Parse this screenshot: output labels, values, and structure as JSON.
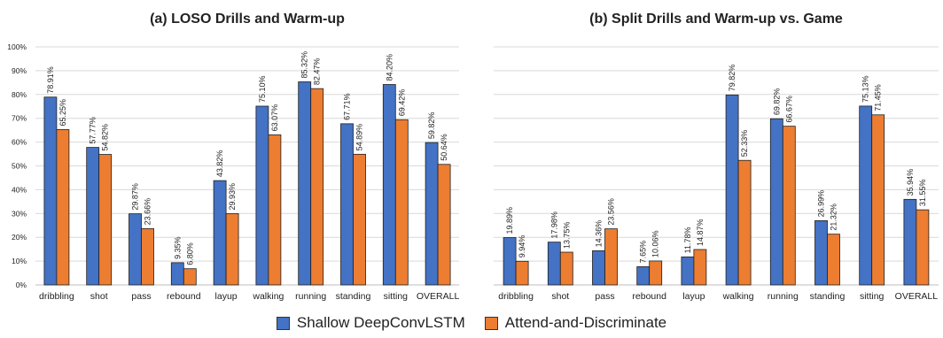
{
  "colors": {
    "shallow": "#4472C4",
    "attend": "#ED7D31",
    "grid": "#d9d9d9",
    "text": "#222222"
  },
  "legend": {
    "series_1": "Shallow DeepConvLSTM",
    "series_2": "Attend-and-Discriminate"
  },
  "chart_data": [
    {
      "type": "bar",
      "title": "(a) LOSO Drills and Warm-up",
      "categories": [
        "dribbling",
        "shot",
        "pass",
        "rebound",
        "layup",
        "walking",
        "running",
        "standing",
        "sitting",
        "OVERALL"
      ],
      "ylim": [
        0,
        100
      ],
      "yticks": [
        "0%",
        "10%",
        "20%",
        "30%",
        "40%",
        "50%",
        "60%",
        "70%",
        "80%",
        "90%",
        "100%"
      ],
      "grid": true,
      "legend_position": "bottom",
      "series": [
        {
          "name": "Shallow DeepConvLSTM",
          "values": [
            78.91,
            57.77,
            29.87,
            9.35,
            43.82,
            75.1,
            85.32,
            67.71,
            84.2,
            59.82
          ],
          "labels": [
            "78.91%",
            "57.77%",
            "29.87%",
            "9.35%",
            "43.82%",
            "75.10%",
            "85.32%",
            "67.71%",
            "84.20%",
            "59.82%"
          ]
        },
        {
          "name": "Attend-and-Discriminate",
          "values": [
            65.25,
            54.82,
            23.66,
            6.8,
            29.93,
            63.07,
            82.47,
            54.89,
            69.42,
            50.64
          ],
          "labels": [
            "65.25%",
            "54.82%",
            "23.66%",
            "6.80%",
            "29.93%",
            "63.07%",
            "82.47%",
            "54.89%",
            "69.42%",
            "50.64%"
          ]
        }
      ]
    },
    {
      "type": "bar",
      "title": "(b) Split Drills and Warm-up vs. Game",
      "categories": [
        "dribbling",
        "shot",
        "pass",
        "rebound",
        "layup",
        "walking",
        "running",
        "standing",
        "sitting",
        "OVERALL"
      ],
      "ylim": [
        0,
        100
      ],
      "yticks": [],
      "grid": true,
      "legend_position": "bottom",
      "series": [
        {
          "name": "Shallow DeepConvLSTM",
          "values": [
            19.89,
            17.98,
            14.36,
            7.65,
            11.78,
            79.82,
            69.82,
            26.99,
            75.13,
            35.94
          ],
          "labels": [
            "19.89%",
            "17.98%",
            "14.36%",
            "7.65%",
            "11.78%",
            "79.82%",
            "69.82%",
            "26.99%",
            "75.13%",
            "35.94%"
          ]
        },
        {
          "name": "Attend-and-Discriminate",
          "values": [
            9.94,
            13.75,
            23.56,
            10.06,
            14.87,
            52.33,
            66.67,
            21.32,
            71.45,
            31.55
          ],
          "labels": [
            "9.94%",
            "13.75%",
            "23.56%",
            "10.06%",
            "14.87%",
            "52.33%",
            "66.67%",
            "21.32%",
            "71.45%",
            "31.55%"
          ]
        }
      ]
    }
  ]
}
